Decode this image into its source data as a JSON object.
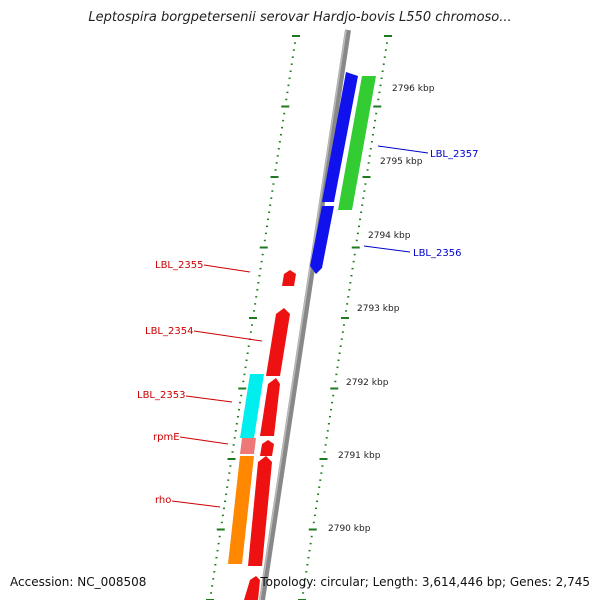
{
  "title": "Leptospira borgpetersenii serovar Hardjo-bovis L550 chromoso...",
  "footer": {
    "accession": "Accession: NC_008508",
    "stats": "Topology: circular; Length: 3,614,446 bp; Genes: 2,745"
  },
  "colors": {
    "backbone": "#888888",
    "tick": "#1e7a1e",
    "forward_label": "#0000cc",
    "reverse_label": "#cc0000"
  },
  "kbp_labels": [
    "2796 kbp",
    "2795 kbp",
    "2794 kbp",
    "2793 kbp",
    "2792 kbp",
    "2791 kbp",
    "2790 kbp"
  ],
  "genes": [
    {
      "name": "LBL_2357",
      "color": "#33cc33"
    },
    {
      "name": "LBL_2356",
      "color": "#1111ee"
    },
    {
      "name": "LBL_2355",
      "color": "#ee1111"
    },
    {
      "name": "LBL_2354",
      "color": "#ee1111"
    },
    {
      "name": "LBL_2353",
      "color": "#00eeee"
    },
    {
      "name": "rpmE",
      "color": "#ee7777"
    },
    {
      "name": "rho",
      "color": "#ff8800"
    }
  ]
}
